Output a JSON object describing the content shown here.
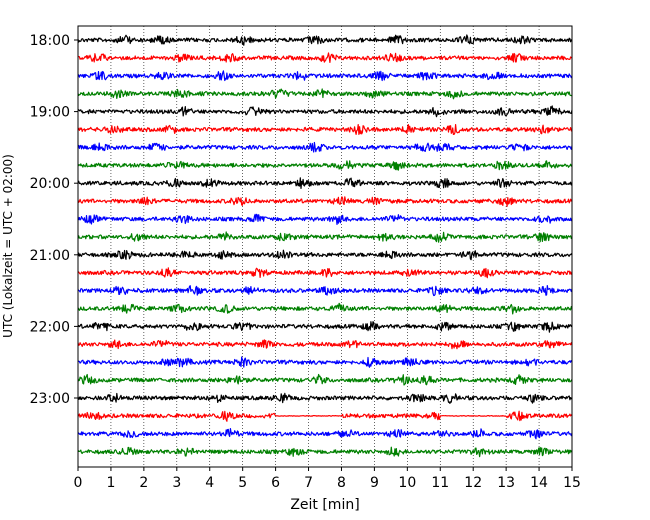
{
  "chart_data": {
    "type": "line",
    "title": "",
    "xlabel": "Zeit  [min]",
    "ylabel": "UTC (Lokalzeit = UTC + 02:00)",
    "xlim": [
      0,
      15
    ],
    "x_ticks": [
      "0",
      "1",
      "2",
      "3",
      "4",
      "5",
      "6",
      "7",
      "8",
      "9",
      "10",
      "11",
      "12",
      "13",
      "14",
      "15"
    ],
    "y_ticks": [
      {
        "label": "18:00",
        "trace": 0
      },
      {
        "label": "19:00",
        "trace": 4
      },
      {
        "label": "20:00",
        "trace": 8
      },
      {
        "label": "21:00",
        "trace": 12
      },
      {
        "label": "22:00",
        "trace": 16
      },
      {
        "label": "23:00",
        "trace": 20
      }
    ],
    "grid": "vertical dotted at each minute",
    "trace_interval_min": 15,
    "trace_colors": [
      "#000000",
      "#ff0000",
      "#0000ff",
      "#008000"
    ],
    "traces": [
      {
        "start": "18:00",
        "color": "#000000",
        "bursts": [
          1.4,
          2.5,
          5.0,
          7.2,
          9.7,
          11.8,
          13.5
        ]
      },
      {
        "start": "18:15",
        "color": "#ff0000",
        "bursts": [
          0.6,
          3.2,
          4.6,
          7.6,
          9.6,
          13.3
        ]
      },
      {
        "start": "18:30",
        "color": "#0000ff",
        "bursts": [
          0.7,
          2.6,
          4.4,
          6.8,
          9.2,
          10.6,
          12.6
        ]
      },
      {
        "start": "18:45",
        "color": "#008000",
        "bursts": [
          1.2,
          3.1,
          6.1,
          7.4,
          9.0,
          11.4
        ]
      },
      {
        "start": "19:00",
        "color": "#000000",
        "bursts": [
          3.2,
          5.3,
          10.9,
          12.9,
          14.4
        ]
      },
      {
        "start": "19:15",
        "color": "#ff0000",
        "bursts": [
          1.1,
          2.8,
          8.5,
          10.0,
          11.4,
          14.1
        ]
      },
      {
        "start": "19:30",
        "color": "#0000ff",
        "bursts": [
          0.7,
          2.4,
          7.2,
          10.5,
          11.1,
          13.4
        ]
      },
      {
        "start": "19:45",
        "color": "#008000",
        "bursts": [
          3.0,
          8.1,
          9.7,
          12.9,
          14.3
        ]
      },
      {
        "start": "20:00",
        "color": "#000000",
        "bursts": [
          2.9,
          4.0,
          6.8,
          8.3,
          11.1,
          12.9
        ]
      },
      {
        "start": "20:15",
        "color": "#ff0000",
        "bursts": [
          2.1,
          4.9,
          8.0,
          9.0,
          13.0
        ]
      },
      {
        "start": "20:30",
        "color": "#0000ff",
        "bursts": [
          0.4,
          3.2,
          5.4,
          7.9,
          9.6,
          14.2
        ]
      },
      {
        "start": "20:45",
        "color": "#008000",
        "bursts": [
          1.8,
          4.4,
          6.3,
          9.3,
          11.0,
          14.1
        ]
      },
      {
        "start": "21:00",
        "color": "#000000",
        "bursts": [
          1.4,
          3.3,
          4.4,
          6.2,
          9.5,
          11.9
        ]
      },
      {
        "start": "21:15",
        "color": "#ff0000",
        "bursts": [
          2.7,
          5.5,
          7.6,
          10.1,
          12.4
        ]
      },
      {
        "start": "21:30",
        "color": "#0000ff",
        "bursts": [
          1.3,
          3.5,
          5.2,
          7.6,
          10.9,
          12.1,
          14.2
        ]
      },
      {
        "start": "21:45",
        "color": "#008000",
        "bursts": [
          1.5,
          3.1,
          4.5,
          7.9,
          11.1,
          13.2
        ]
      },
      {
        "start": "22:00",
        "color": "#000000",
        "bursts": [
          0.7,
          3.5,
          5.0,
          8.9,
          11.1,
          13.2,
          14.3
        ]
      },
      {
        "start": "22:15",
        "color": "#ff0000",
        "bursts": [
          1.2,
          2.5,
          5.7,
          8.3,
          11.5,
          14.3
        ]
      },
      {
        "start": "22:30",
        "color": "#0000ff",
        "bursts": [
          2.8,
          3.2,
          5.0,
          8.9,
          10.1,
          13.7
        ]
      },
      {
        "start": "22:45",
        "color": "#008000",
        "bursts": [
          0.3,
          4.8,
          7.3,
          9.9,
          10.6,
          13.4
        ]
      },
      {
        "start": "23:00",
        "color": "#000000",
        "bursts": [
          1.1,
          4.2,
          6.2,
          10.3,
          11.3,
          13.8
        ]
      },
      {
        "start": "23:15",
        "color": "#ff0000",
        "bursts": [
          0.5,
          4.5,
          6.1,
          10.9,
          13.4
        ],
        "gaps": [
          [
            6.0,
            8.0
          ],
          [
            11.0,
            13.0
          ]
        ]
      },
      {
        "start": "23:30",
        "color": "#0000ff",
        "bursts": [
          1.6,
          4.6,
          8.1,
          9.7,
          11.0,
          12.2,
          13.9
        ]
      },
      {
        "start": "23:45",
        "color": "#008000",
        "bursts": [
          1.5,
          3.3,
          6.6,
          9.6,
          12.2,
          14.1
        ]
      }
    ]
  }
}
